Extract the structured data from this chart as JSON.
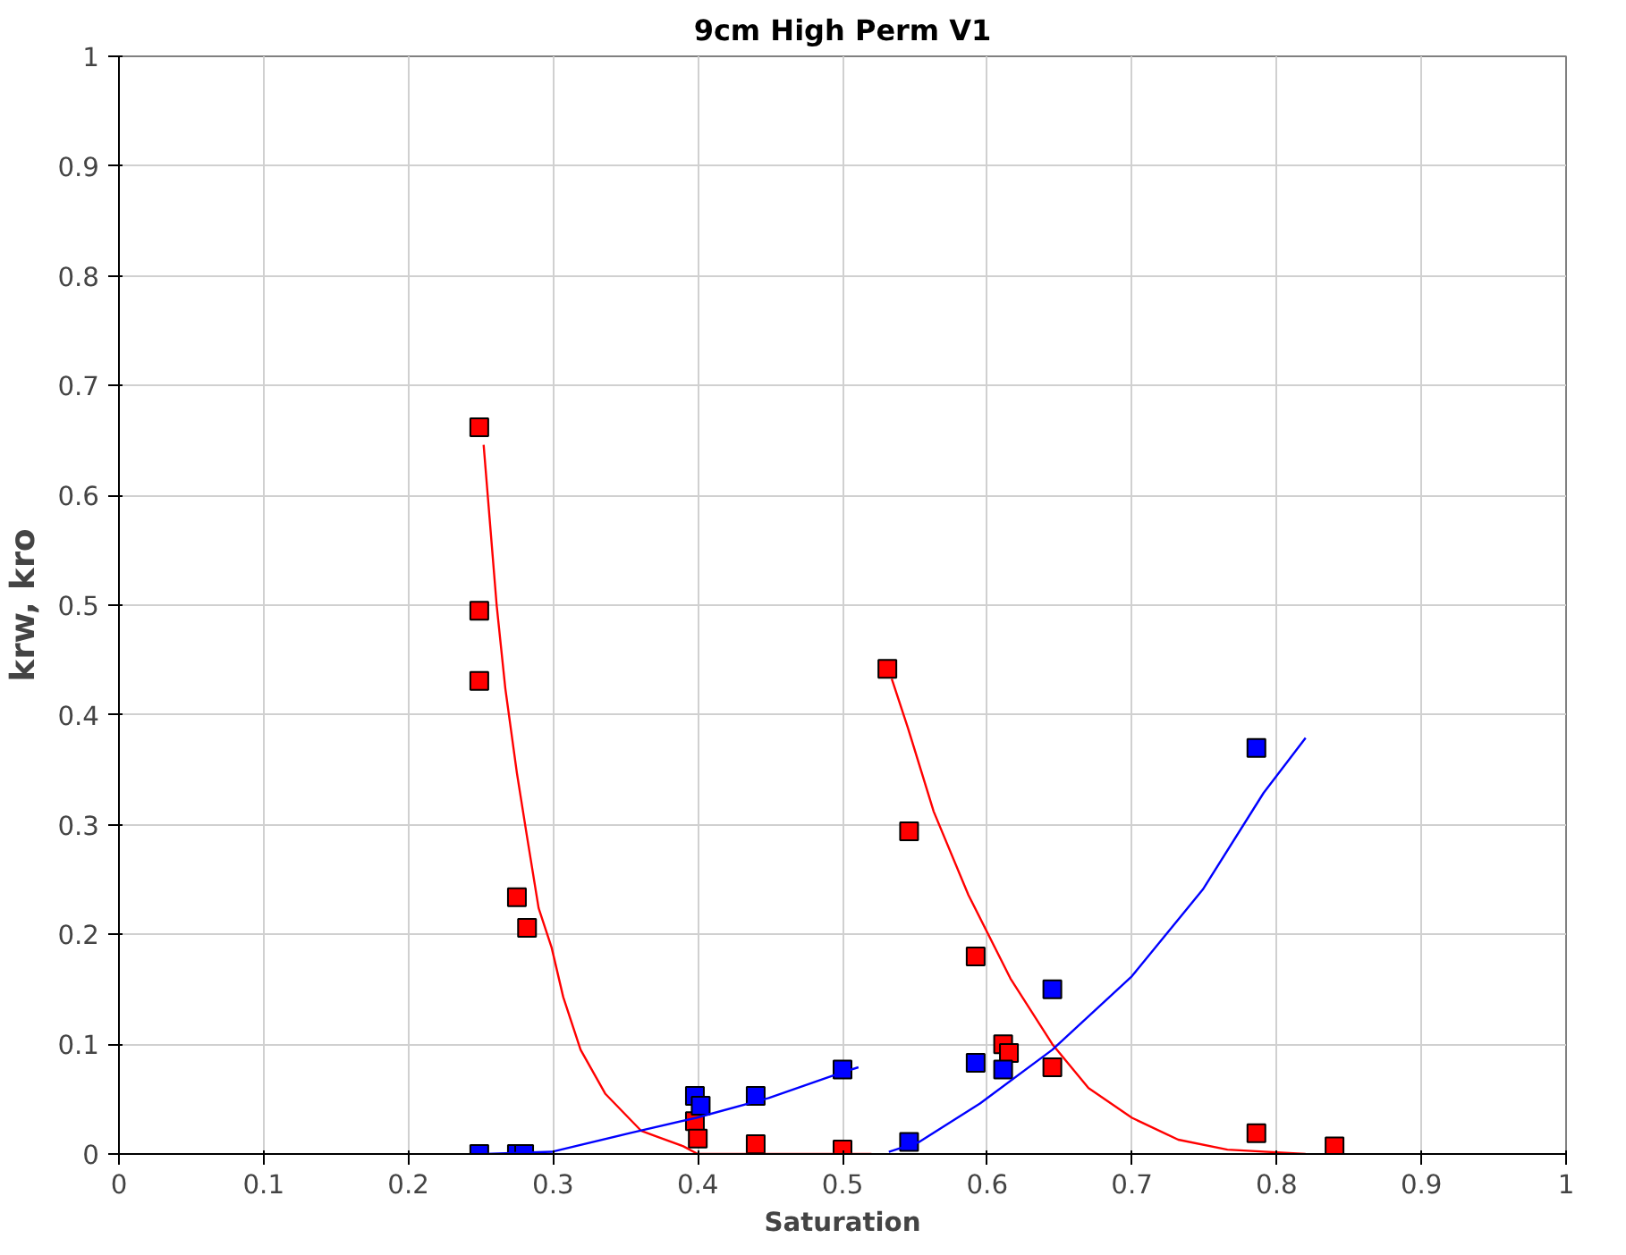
{
  "chart_data": {
    "type": "scatter",
    "title": "9cm High Perm V1",
    "xlabel": "Saturation",
    "ylabel": "krw, kro",
    "xlim": [
      0,
      1
    ],
    "ylim": [
      0,
      1
    ],
    "xticks": [
      0,
      0.1,
      0.2,
      0.3,
      0.4,
      0.5,
      0.6,
      0.7,
      0.8,
      0.9,
      1
    ],
    "yticks": [
      0,
      0.1,
      0.2,
      0.3,
      0.4,
      0.5,
      0.6,
      0.7,
      0.8,
      0.9,
      1
    ],
    "grid": true,
    "marker": "square",
    "series": [
      {
        "color": "#ff0000",
        "x": [
          0.249,
          0.249,
          0.249,
          0.275,
          0.282,
          0.398,
          0.4,
          0.44,
          0.5,
          0.531,
          0.546,
          0.592,
          0.611,
          0.615,
          0.645,
          0.786,
          0.84
        ],
        "values": [
          0.662,
          0.495,
          0.431,
          0.234,
          0.206,
          0.03,
          0.014,
          0.009,
          0.004,
          0.442,
          0.294,
          0.18,
          0.1,
          0.092,
          0.079,
          0.019,
          0.007
        ]
      },
      {
        "color": "#0000ff",
        "x": [
          0.249,
          0.275,
          0.28,
          0.398,
          0.402,
          0.44,
          0.5,
          0.546,
          0.592,
          0.611,
          0.645,
          0.786
        ],
        "values": [
          0,
          0,
          0,
          0.053,
          0.044,
          0.053,
          0.077,
          0.011,
          0.083,
          0.077,
          0.15,
          0.37
        ]
      },
      {
        "type": "line",
        "marker": "none",
        "color": "#ff0000",
        "x": [
          0.252,
          0.261,
          0.267,
          0.275,
          0.282,
          0.29,
          0.299,
          0.307,
          0.319,
          0.336,
          0.361,
          0.39,
          0.4,
          0.52
        ],
        "values": [
          0.646,
          0.5,
          0.424,
          0.347,
          0.289,
          0.224,
          0.188,
          0.143,
          0.095,
          0.055,
          0.021,
          0.007,
          0,
          0
        ]
      },
      {
        "type": "line",
        "marker": "none",
        "color": "#ff0000",
        "x": [
          0.534,
          0.545,
          0.563,
          0.587,
          0.616,
          0.645,
          0.67,
          0.7,
          0.732,
          0.766,
          0.82
        ],
        "values": [
          0.433,
          0.389,
          0.312,
          0.236,
          0.16,
          0.1,
          0.06,
          0.033,
          0.013,
          0.004,
          0
        ]
      },
      {
        "type": "line",
        "marker": "none",
        "color": "#0000ff",
        "x": [
          0.253,
          0.299,
          0.353,
          0.399,
          0.449,
          0.499,
          0.511
        ],
        "values": [
          0,
          0.002,
          0.019,
          0.033,
          0.051,
          0.074,
          0.079
        ]
      },
      {
        "type": "line",
        "marker": "none",
        "color": "#0000ff",
        "x": [
          0.532,
          0.553,
          0.595,
          0.645,
          0.7,
          0.749,
          0.791,
          0.82
        ],
        "values": [
          0.002,
          0.011,
          0.046,
          0.095,
          0.162,
          0.241,
          0.329,
          0.379
        ]
      }
    ]
  }
}
